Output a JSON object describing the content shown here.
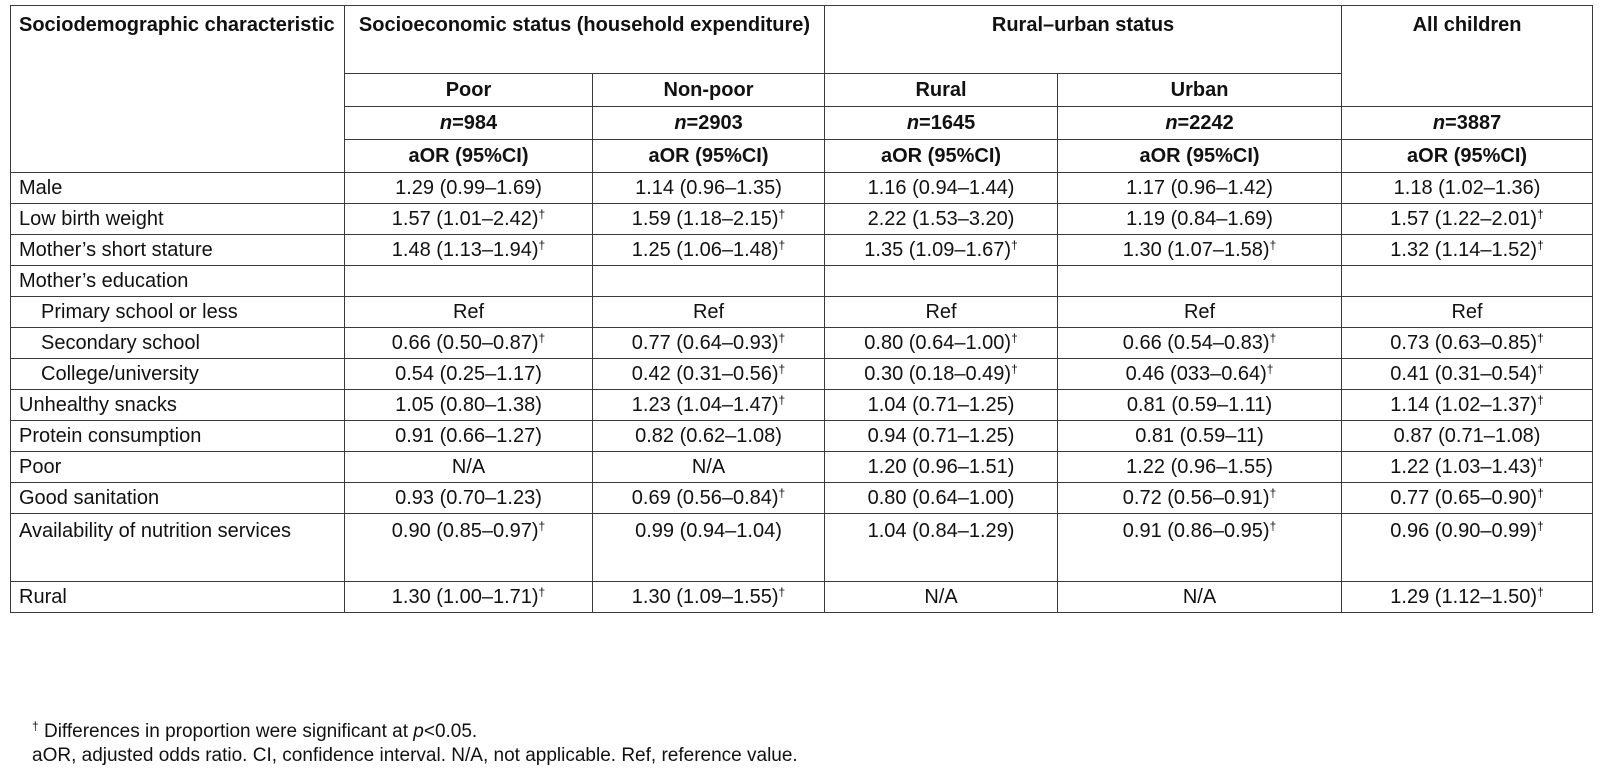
{
  "table": {
    "header": {
      "characteristic": "Sociodemographic characteristic",
      "groups": [
        {
          "label": "Socioeconomic status (household expenditure)",
          "colspan": 2
        },
        {
          "label": "Rural–urban status",
          "colspan": 2
        },
        {
          "label": "All children",
          "colspan": 1
        }
      ],
      "subgroups": [
        "Poor",
        "Non-poor",
        "Rural",
        "Urban"
      ],
      "n_prefix": "n",
      "n_values": [
        "=984",
        "=2903",
        "=1645",
        "=2242",
        "=3887"
      ],
      "stat_label": "aOR (95%CI)"
    },
    "dagger": "†",
    "rows": [
      {
        "label": "Male",
        "indent": false,
        "cells": [
          {
            "v": "1.29 (0.99–1.69)",
            "sig": false
          },
          {
            "v": "1.14 (0.96–1.35)",
            "sig": false
          },
          {
            "v": "1.16 (0.94–1.44)",
            "sig": false
          },
          {
            "v": "1.17 (0.96–1.42)",
            "sig": false
          },
          {
            "v": "1.18 (1.02–1.36)",
            "sig": false
          }
        ]
      },
      {
        "label": "Low birth weight",
        "indent": false,
        "cells": [
          {
            "v": "1.57 (1.01–2.42)",
            "sig": true
          },
          {
            "v": "1.59 (1.18–2.15)",
            "sig": true
          },
          {
            "v": "2.22 (1.53–3.20)",
            "sig": false
          },
          {
            "v": "1.19 (0.84–1.69)",
            "sig": false
          },
          {
            "v": "1.57 (1.22–2.01)",
            "sig": true
          }
        ]
      },
      {
        "label": "Mother’s short stature",
        "indent": false,
        "cells": [
          {
            "v": "1.48 (1.13–1.94)",
            "sig": true
          },
          {
            "v": "1.25 (1.06–1.48)",
            "sig": true
          },
          {
            "v": "1.35 (1.09–1.67)",
            "sig": true
          },
          {
            "v": "1.30 (1.07–1.58)",
            "sig": true
          },
          {
            "v": "1.32 (1.14–1.52)",
            "sig": true
          }
        ]
      },
      {
        "label": "Mother’s education",
        "indent": false,
        "cells": [
          {
            "v": "",
            "sig": false
          },
          {
            "v": "",
            "sig": false
          },
          {
            "v": "",
            "sig": false
          },
          {
            "v": "",
            "sig": false
          },
          {
            "v": "",
            "sig": false
          }
        ]
      },
      {
        "label": "Primary school or less",
        "indent": true,
        "cells": [
          {
            "v": "Ref",
            "sig": false
          },
          {
            "v": "Ref",
            "sig": false
          },
          {
            "v": "Ref",
            "sig": false
          },
          {
            "v": "Ref",
            "sig": false
          },
          {
            "v": "Ref",
            "sig": false
          }
        ]
      },
      {
        "label": "Secondary school",
        "indent": true,
        "cells": [
          {
            "v": "0.66 (0.50–0.87)",
            "sig": true
          },
          {
            "v": "0.77 (0.64–0.93)",
            "sig": true
          },
          {
            "v": "0.80 (0.64–1.00)",
            "sig": true
          },
          {
            "v": "0.66 (0.54–0.83)",
            "sig": true
          },
          {
            "v": "0.73 (0.63–0.85)",
            "sig": true
          }
        ]
      },
      {
        "label": "College/university",
        "indent": true,
        "cells": [
          {
            "v": "0.54 (0.25–1.17)",
            "sig": false
          },
          {
            "v": "0.42 (0.31–0.56)",
            "sig": true
          },
          {
            "v": "0.30 (0.18–0.49)",
            "sig": true
          },
          {
            "v": "0.46 (033–0.64)",
            "sig": true
          },
          {
            "v": "0.41 (0.31–0.54)",
            "sig": true
          }
        ]
      },
      {
        "label": "Unhealthy snacks",
        "indent": false,
        "cells": [
          {
            "v": "1.05 (0.80–1.38)",
            "sig": false
          },
          {
            "v": "1.23 (1.04–1.47)",
            "sig": true
          },
          {
            "v": "1.04 (0.71–1.25)",
            "sig": false
          },
          {
            "v": "0.81 (0.59–1.11)",
            "sig": false
          },
          {
            "v": "1.14 (1.02–1.37)",
            "sig": true
          }
        ]
      },
      {
        "label": "Protein consumption",
        "indent": false,
        "cells": [
          {
            "v": "0.91 (0.66–1.27)",
            "sig": false
          },
          {
            "v": "0.82 (0.62–1.08)",
            "sig": false
          },
          {
            "v": "0.94 (0.71–1.25)",
            "sig": false
          },
          {
            "v": "0.81 (0.59–11)",
            "sig": false
          },
          {
            "v": "0.87 (0.71–1.08)",
            "sig": false
          }
        ]
      },
      {
        "label": "Poor",
        "indent": false,
        "cells": [
          {
            "v": "N/A",
            "sig": false
          },
          {
            "v": "N/A",
            "sig": false
          },
          {
            "v": "1.20 (0.96–1.51)",
            "sig": false
          },
          {
            "v": "1.22 (0.96–1.55)",
            "sig": false
          },
          {
            "v": "1.22 (1.03–1.43)",
            "sig": true
          }
        ]
      },
      {
        "label": "Good sanitation",
        "indent": false,
        "cells": [
          {
            "v": "0.93 (0.70–1.23)",
            "sig": false
          },
          {
            "v": "0.69 (0.56–0.84)",
            "sig": true
          },
          {
            "v": "0.80 (0.64–1.00)",
            "sig": false
          },
          {
            "v": "0.72 (0.56–0.91)",
            "sig": true
          },
          {
            "v": "0.77 (0.65–0.90)",
            "sig": true
          }
        ]
      },
      {
        "label": "Availability of nutrition services",
        "indent": false,
        "tall": true,
        "cells": [
          {
            "v": "0.90 (0.85–0.97)",
            "sig": true
          },
          {
            "v": "0.99 (0.94–1.04)",
            "sig": false
          },
          {
            "v": "1.04 (0.84–1.29)",
            "sig": false
          },
          {
            "v": "0.91 (0.86–0.95)",
            "sig": true
          },
          {
            "v": "0.96 (0.90–0.99)",
            "sig": true
          }
        ]
      },
      {
        "label": "Rural",
        "indent": false,
        "cells": [
          {
            "v": "1.30 (1.00–1.71)",
            "sig": true
          },
          {
            "v": "1.30 (1.09–1.55)",
            "sig": true
          },
          {
            "v": "N/A",
            "sig": false
          },
          {
            "v": "N/A",
            "sig": false
          },
          {
            "v": "1.29 (1.12–1.50)",
            "sig": true
          }
        ]
      }
    ]
  },
  "footnotes": {
    "line1_mark": "†",
    "line1_text": " Differences in proportion were significant at ",
    "line1_p": "p",
    "line1_end": "<0.05.",
    "line2": "aOR, adjusted odds ratio. CI, confidence interval. N/A, not applicable. Ref, reference value."
  }
}
